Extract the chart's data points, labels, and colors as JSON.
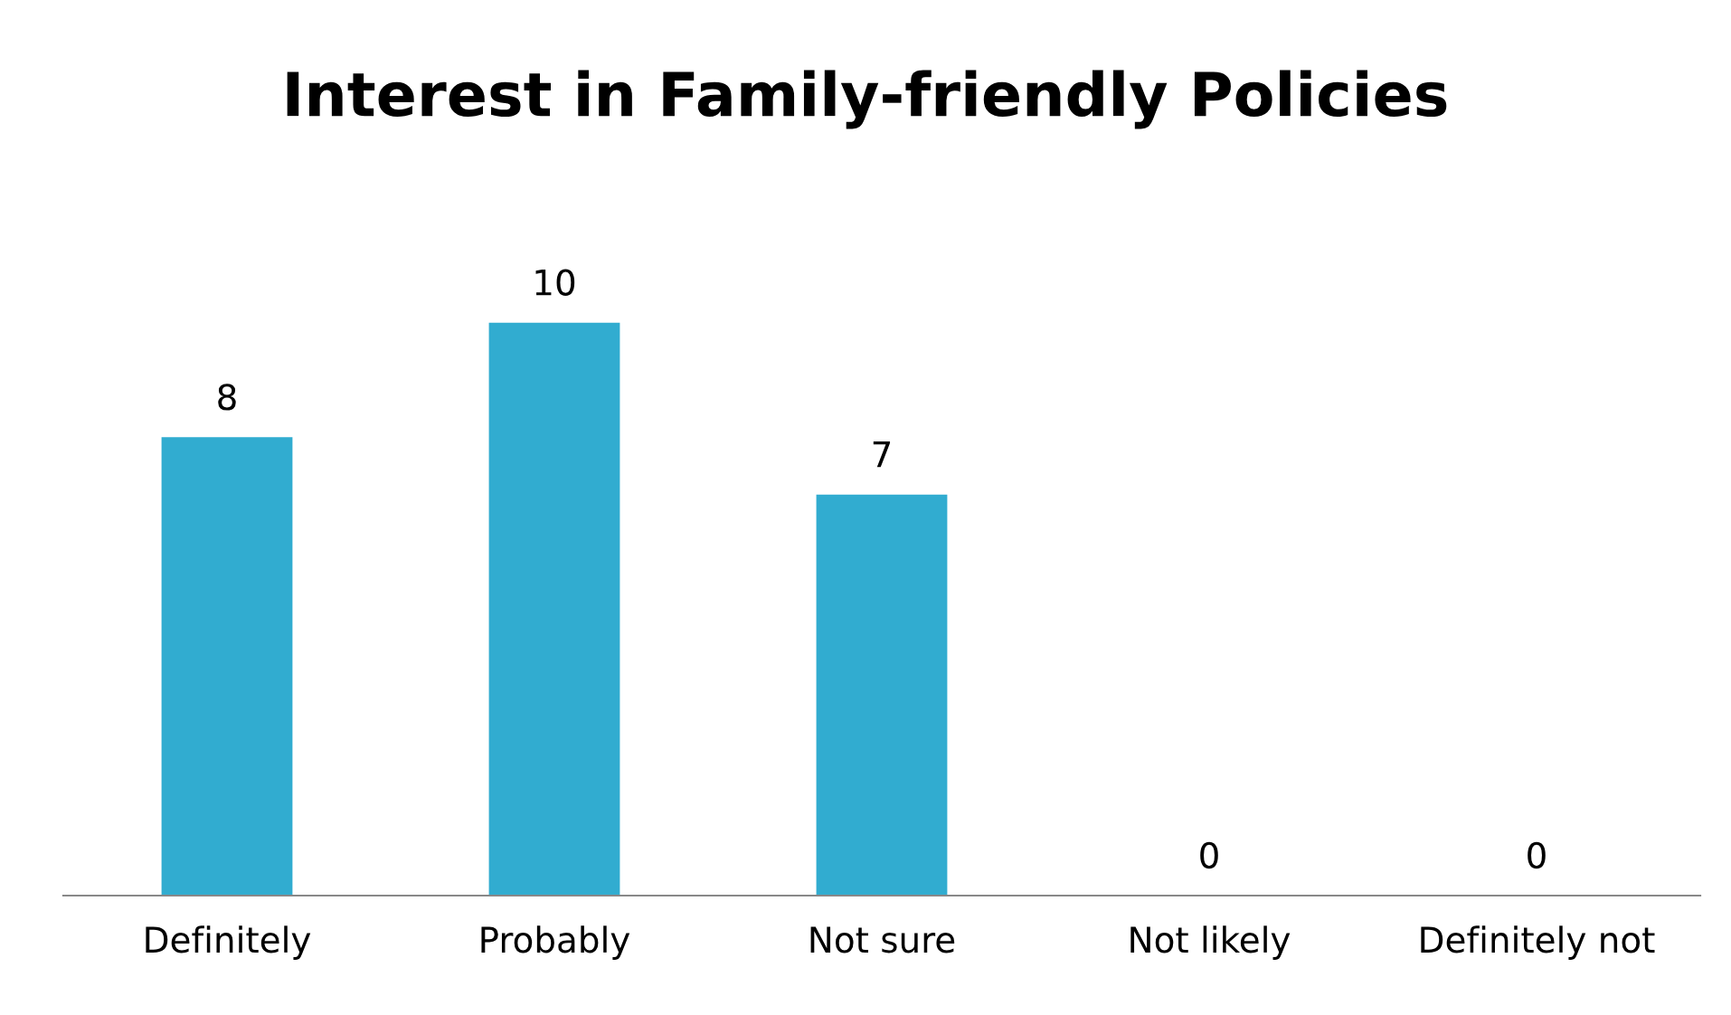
{
  "chart_data": {
    "type": "bar",
    "title": "Interest in Family-friendly Policies",
    "categories": [
      "Definitely",
      "Probably",
      "Not sure",
      "Not likely",
      "Definitely not"
    ],
    "values": [
      8,
      10,
      7,
      0,
      0
    ],
    "color": "#31acd0",
    "data_labels": true,
    "grid": false,
    "legend": false
  }
}
